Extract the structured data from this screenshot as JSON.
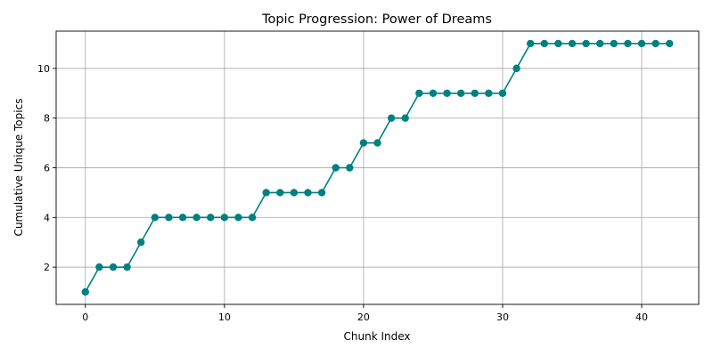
{
  "chart_data": {
    "type": "line",
    "title": "Topic Progression: Power of Dreams",
    "xlabel": "Chunk Index",
    "ylabel": "Cumulative Unique Topics",
    "xlim": [
      -2.1,
      44.1
    ],
    "ylim": [
      0.5,
      11.5
    ],
    "xticks": [
      0,
      10,
      20,
      30,
      40
    ],
    "yticks": [
      2,
      4,
      6,
      8,
      10
    ],
    "grid": true,
    "color": "#008080",
    "marker": "circle",
    "series": [
      {
        "x": [
          0,
          1,
          2,
          3,
          4,
          5,
          6,
          7,
          8,
          9,
          10,
          11,
          12,
          13,
          14,
          15,
          16,
          17,
          18,
          19,
          20,
          21,
          22,
          23,
          24,
          25,
          26,
          27,
          28,
          29,
          30,
          31,
          32,
          33,
          34,
          35,
          36,
          37,
          38,
          39,
          40,
          41,
          42
        ],
        "values": [
          1,
          2,
          2,
          2,
          3,
          4,
          4,
          4,
          4,
          4,
          4,
          4,
          4,
          5,
          5,
          5,
          5,
          5,
          6,
          6,
          7,
          7,
          8,
          8,
          9,
          9,
          9,
          9,
          9,
          9,
          9,
          10,
          11,
          11,
          11,
          11,
          11,
          11,
          11,
          11,
          11,
          11,
          11
        ]
      }
    ]
  }
}
